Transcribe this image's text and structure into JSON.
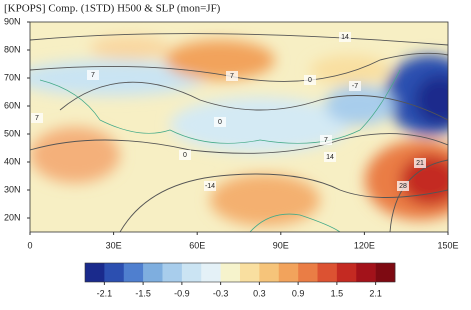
{
  "chart_data": {
    "type": "contour-map",
    "title": "[KPOPS] Comp. (1STD) H500 & SLP (mon=JF)",
    "xlim": [
      0,
      150
    ],
    "xticks": [
      0,
      {
        "value": 30,
        "label": "30E"
      },
      {
        "value": 60,
        "label": "60E"
      },
      {
        "value": 90,
        "label": "90E"
      },
      {
        "value": 120,
        "label": "120E"
      },
      {
        "value": 150,
        "label": "150E"
      }
    ],
    "ylim": [
      15,
      90
    ],
    "yticks": [
      {
        "value": 20,
        "label": "20N"
      },
      {
        "value": 30,
        "label": "30N"
      },
      {
        "value": 40,
        "label": "40N"
      },
      {
        "value": 50,
        "label": "50N"
      },
      {
        "value": 60,
        "label": "60N"
      },
      {
        "value": 70,
        "label": "70N"
      },
      {
        "value": 80,
        "label": "80N"
      },
      {
        "value": 90,
        "label": "90N"
      }
    ],
    "contour_labels": [
      14,
      7,
      7,
      0,
      -7,
      0,
      7,
      0,
      7,
      14,
      21,
      28,
      -14
    ],
    "colorbar": {
      "colors": [
        "#1a2a8c",
        "#2c4fb0",
        "#4f7fcf",
        "#7eaedf",
        "#a8cdec",
        "#cbe4f3",
        "#e4f1f7",
        "#f6f3cc",
        "#f9dfa0",
        "#f6c47a",
        "#f2a35c",
        "#ea7d45",
        "#dc5232",
        "#c42a22",
        "#a3121a",
        "#7e0a12"
      ],
      "ticks": [
        -2.1,
        -1.5,
        -0.9,
        -0.3,
        0.3,
        0.9,
        1.5,
        2.1
      ],
      "lim": [
        -2.4,
        2.4
      ]
    }
  }
}
